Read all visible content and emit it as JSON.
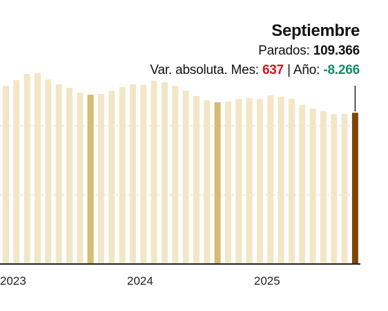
{
  "tooltip": {
    "month": "Septiembre",
    "parados_label": "Parados:",
    "parados_value": "109.366",
    "var_label": "Var. absoluta. Mes:",
    "var_mes": "637",
    "separator": "|",
    "ano_label": "Año:",
    "var_ano": "-8.266"
  },
  "colors": {
    "bar": "#f3e6c6",
    "bar_september": "#d8bb72",
    "bar_selected": "#7a4708",
    "axis": "#222222",
    "grid": "#d9d9d9",
    "month_up": "#d6141e",
    "year_down": "#138a6c"
  },
  "chart_data": {
    "type": "bar",
    "xlabel": "",
    "ylabel": "",
    "ylim": [
      0,
      150000
    ],
    "grid": true,
    "x_ticks": [
      "2023",
      "2024",
      "2025"
    ],
    "values": [
      129000,
      133000,
      137500,
      138000,
      133500,
      130000,
      127500,
      124000,
      122500,
      123000,
      125500,
      128000,
      130000,
      129500,
      132500,
      131500,
      129000,
      125500,
      121500,
      118500,
      117000,
      117500,
      119500,
      120000,
      119500,
      122000,
      121000,
      119500,
      115000,
      112500,
      110500,
      108500,
      108500,
      109400
    ],
    "highlight_september": [
      8,
      20,
      33
    ],
    "selected": 33
  }
}
